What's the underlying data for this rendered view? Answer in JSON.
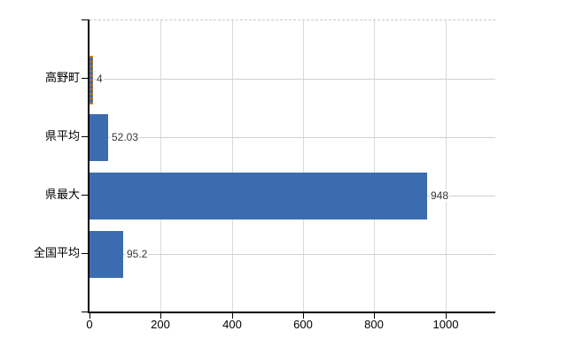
{
  "chart_data": {
    "type": "bar",
    "orientation": "horizontal",
    "title": "",
    "xlabel": "",
    "ylabel": "",
    "categories": [
      "高野町",
      "県平均",
      "県最大",
      "全国平均"
    ],
    "values": [
      4,
      52.03,
      948,
      95.2
    ],
    "value_labels": [
      "4",
      "52.03",
      "948",
      "95.2"
    ],
    "highlighted_index": 0,
    "x_ticks": [
      0,
      200,
      400,
      600,
      800,
      1000
    ],
    "xlim": [
      0,
      1140
    ],
    "grid": true,
    "legend": false,
    "colors": {
      "bar_fill": "#3c6cb0",
      "highlight_border": "#f28500",
      "vertical_gridline": "#dadada",
      "horizontal_gridline": "#ccd4cc",
      "axis_line": "#000000",
      "top_border_dashed": "#c9c9c9",
      "background": "#ffffff",
      "category_text": "#000000",
      "value_text": "#363636",
      "tick_text": "#000000"
    }
  }
}
